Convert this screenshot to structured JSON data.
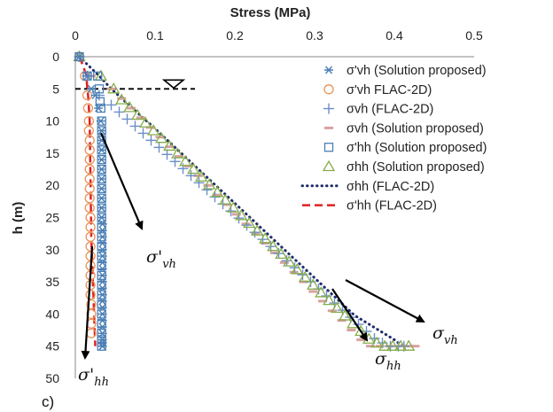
{
  "chart_data": {
    "type": "scatter",
    "title": "",
    "xlabel": "Stress (MPa)",
    "ylabel": "h (m)",
    "xlim": [
      0,
      0.5
    ],
    "ylim": [
      0,
      50
    ],
    "x_ticks": [
      "0",
      "0.1",
      "0.2",
      "0.3",
      "0.4",
      "0.5"
    ],
    "y_ticks": [
      "0",
      "5",
      "10",
      "15",
      "20",
      "25",
      "30",
      "35",
      "40",
      "45",
      "50"
    ],
    "x_axis_position": "top",
    "y_axis_inverted": true,
    "grid": false,
    "legend_position": "right",
    "water_table_depth": 5,
    "colors": {
      "blue_marker": "#4a7fb5",
      "orange_marker": "#e8945b",
      "green_marker": "#86ad4a",
      "pink_dash": "#d9a0a0",
      "navy_dots": "#1f2d6b",
      "red_dash": "#e02020"
    },
    "series": [
      {
        "name": "σ'vh (Solution proposed)",
        "marker": "asterisk",
        "color": "#4a7fb5",
        "x": [
          0.005,
          0.015,
          0.02,
          0.025,
          0.029,
          0.032,
          0.033,
          0.033,
          0.033,
          0.033,
          0.033,
          0.033,
          0.033,
          0.033,
          0.033,
          0.033,
          0.034,
          0.034,
          0.034,
          0.034,
          0.034,
          0.034,
          0.034,
          0.034,
          0.034,
          0.034,
          0.034,
          0.034,
          0.034,
          0.034,
          0.034,
          0.034,
          0.034,
          0.034,
          0.034,
          0.034,
          0.034,
          0.034
        ],
        "y": [
          0,
          3,
          5,
          6,
          8,
          10,
          11.5,
          13,
          14.5,
          16,
          17.5,
          19,
          20.5,
          22,
          23.5,
          25,
          26,
          27,
          28,
          29,
          30,
          31,
          32,
          33,
          34,
          35,
          36,
          37,
          38,
          39,
          40,
          41,
          42,
          43,
          44,
          44.5,
          45,
          45
        ]
      },
      {
        "name": "σ'vh FLAC-2D)",
        "marker": "circle",
        "color": "#e8945b",
        "x": [
          0.005,
          0.012,
          0.015,
          0.016,
          0.017,
          0.017,
          0.018,
          0.018,
          0.018,
          0.018,
          0.018,
          0.018,
          0.018,
          0.018,
          0.019,
          0.019,
          0.019,
          0.019,
          0.019,
          0.019,
          0.019,
          0.019,
          0.019,
          0.02,
          0.02,
          0.02,
          0.02
        ],
        "y": [
          0,
          3,
          6,
          8,
          10,
          11.5,
          13,
          14.5,
          16,
          17.5,
          19,
          20.5,
          22,
          23.5,
          25,
          26.5,
          28,
          29.5,
          31,
          32.5,
          34,
          35.5,
          37,
          38.5,
          40,
          41.5,
          43
        ]
      },
      {
        "name": "σvh (FLAC-2D)",
        "marker": "plus",
        "color": "#6d8fc9",
        "x": [
          0.005,
          0.015,
          0.03,
          0.045,
          0.055,
          0.065,
          0.075,
          0.085,
          0.095,
          0.105,
          0.115,
          0.125,
          0.135,
          0.145,
          0.155,
          0.165,
          0.175,
          0.185,
          0.195,
          0.205,
          0.215,
          0.225,
          0.235,
          0.245,
          0.255,
          0.265,
          0.275,
          0.285,
          0.295,
          0.305,
          0.315,
          0.325,
          0.335,
          0.345,
          0.355,
          0.365,
          0.375,
          0.385,
          0.395,
          0.405,
          0.412
        ],
        "y": [
          0,
          3,
          6,
          7.5,
          8.6,
          9.7,
          10.8,
          11.9,
          13,
          14.1,
          15.2,
          16.3,
          17.4,
          18.5,
          19.6,
          20.7,
          21.8,
          22.9,
          24,
          25.1,
          26.2,
          27.3,
          28.4,
          29.5,
          30.6,
          31.7,
          32.8,
          33.9,
          35,
          36.1,
          37.2,
          38.3,
          39.4,
          40.5,
          41.6,
          42.7,
          43.8,
          44.5,
          45,
          45,
          45
        ]
      },
      {
        "name": "σvh (Solution proposed)",
        "marker": "dash",
        "color": "#d9a0a0",
        "x": [
          0.005,
          0.02,
          0.045,
          0.058,
          0.07,
          0.082,
          0.094,
          0.106,
          0.118,
          0.13,
          0.142,
          0.154,
          0.166,
          0.178,
          0.19,
          0.202,
          0.214,
          0.226,
          0.238,
          0.25,
          0.262,
          0.274,
          0.286,
          0.298,
          0.31,
          0.322,
          0.334,
          0.346,
          0.358,
          0.37,
          0.382,
          0.394,
          0.406,
          0.418,
          0.426
        ],
        "y": [
          0,
          3,
          5,
          6.5,
          8,
          9.5,
          11,
          12.5,
          14,
          15.5,
          17,
          18.5,
          20,
          21.5,
          23,
          24.5,
          26,
          27.5,
          29,
          30.5,
          32,
          33.5,
          35,
          36.5,
          38,
          39.5,
          41,
          42.5,
          44,
          45,
          45,
          45,
          45,
          45,
          45
        ]
      },
      {
        "name": "σ'hh (Solution proposed)",
        "marker": "square",
        "color": "#4a7fb5",
        "x": [
          0.005,
          0.015,
          0.028,
          0.03,
          0.031,
          0.032,
          0.033,
          0.033,
          0.033,
          0.033,
          0.033,
          0.033,
          0.033,
          0.033,
          0.033,
          0.033,
          0.033,
          0.033,
          0.033,
          0.033,
          0.033,
          0.033,
          0.033,
          0.033,
          0.033,
          0.033,
          0.033,
          0.033,
          0.033,
          0.033,
          0.033
        ],
        "y": [
          0,
          3,
          3,
          5,
          7,
          8,
          10,
          11.5,
          13,
          14.5,
          16,
          17.5,
          19,
          20.5,
          22,
          23.5,
          25,
          26.5,
          28,
          29.5,
          31,
          32.5,
          34,
          35.5,
          37,
          38.5,
          40,
          41.5,
          43,
          44,
          45
        ]
      },
      {
        "name": "σhh (Solution proposed)",
        "marker": "triangle",
        "color": "#86ad4a",
        "x": [
          0.005,
          0.032,
          0.048,
          0.058,
          0.068,
          0.078,
          0.088,
          0.098,
          0.108,
          0.118,
          0.128,
          0.138,
          0.148,
          0.158,
          0.168,
          0.178,
          0.188,
          0.198,
          0.208,
          0.218,
          0.228,
          0.238,
          0.248,
          0.258,
          0.268,
          0.278,
          0.288,
          0.298,
          0.308,
          0.318,
          0.328,
          0.338,
          0.348,
          0.358,
          0.368,
          0.378,
          0.388,
          0.398,
          0.408,
          0.418
        ],
        "y": [
          0,
          3,
          5,
          6.7,
          7.9,
          9.1,
          10.3,
          11.5,
          12.7,
          13.9,
          15.1,
          16.3,
          17.5,
          18.7,
          19.9,
          21.1,
          22.3,
          23.5,
          24.7,
          25.9,
          27.1,
          28.3,
          29.5,
          30.7,
          31.9,
          33.1,
          34.3,
          35.5,
          36.7,
          37.9,
          39.1,
          40.3,
          41.5,
          42.7,
          43.9,
          44.5,
          45,
          45,
          45,
          45
        ]
      },
      {
        "name": "σhh (FLAC-2D)",
        "marker": "dotted-line",
        "color": "#1f2d6b",
        "x": [
          0.005,
          0.03,
          0.045,
          0.1,
          0.15,
          0.2,
          0.25,
          0.3,
          0.35,
          0.4,
          0.41
        ],
        "y": [
          0,
          3,
          5,
          11.2,
          17,
          22.8,
          28.6,
          34.4,
          40.2,
          44,
          45
        ]
      },
      {
        "name": "σ'hh (FLAC-2D)",
        "marker": "dashed-line",
        "color": "#e02020",
        "x": [
          0.005,
          0.01,
          0.014,
          0.015,
          0.016,
          0.018,
          0.02,
          0.025
        ],
        "y": [
          0,
          1.5,
          3,
          5,
          6,
          10,
          28,
          45
        ]
      }
    ],
    "annotations": [
      {
        "base": "σ'",
        "sub": "vh"
      },
      {
        "base": "σ'",
        "sub": "hh"
      },
      {
        "base": "σ",
        "sub": "vh"
      },
      {
        "base": "σ",
        "sub": "hh"
      }
    ],
    "panel_label": "c)"
  }
}
